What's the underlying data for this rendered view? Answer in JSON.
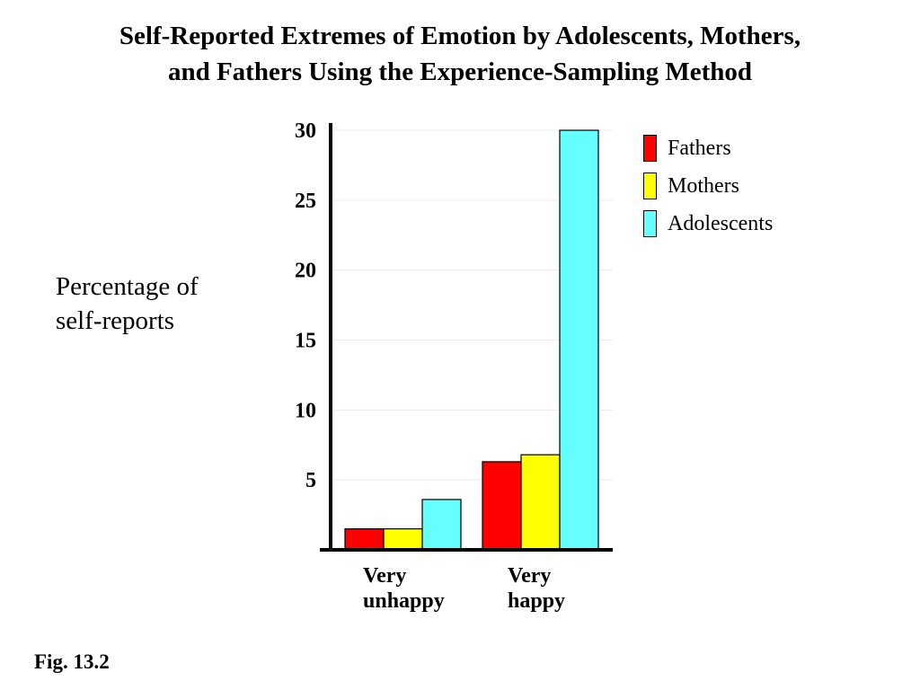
{
  "title": {
    "line1": "Self-Reported Extremes of Emotion by Adolescents, Mothers,",
    "line2": "and Fathers Using the Experience-Sampling Method"
  },
  "ylabel": {
    "line1": "Percentage of",
    "line2": "self-reports"
  },
  "figure_label": "Fig. 13.2",
  "chart_data": {
    "type": "bar",
    "title": "Self-Reported Extremes of Emotion by Adolescents, Mothers, and Fathers Using the Experience-Sampling Method",
    "ylabel": "Percentage of self-reports",
    "xlabel": "",
    "categories": [
      [
        "Very",
        "unhappy"
      ],
      [
        "Very",
        "happy"
      ]
    ],
    "series": [
      {
        "name": "Fathers",
        "color": "#ff0000",
        "values": [
          1.5,
          6.3
        ]
      },
      {
        "name": "Mothers",
        "color": "#ffff00",
        "values": [
          1.5,
          6.8
        ]
      },
      {
        "name": "Adolescents",
        "color": "#66ffff",
        "values": [
          3.6,
          30
        ]
      }
    ],
    "yticks": [
      5,
      10,
      15,
      20,
      25,
      30
    ],
    "ylim": [
      0,
      30
    ],
    "grid": true,
    "legend": "right"
  }
}
